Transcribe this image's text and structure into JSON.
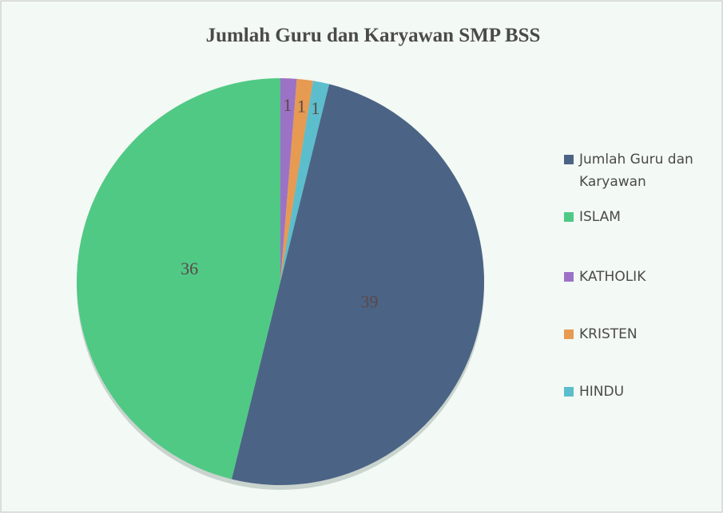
{
  "chart_data": {
    "type": "pie",
    "title": "Jumlah Guru dan Karyawan SMP BSS",
    "categories": [
      "Jumlah Guru dan Karyawan",
      "ISLAM",
      "KATHOLIK",
      "KRISTEN",
      "HINDU"
    ],
    "values": [
      39,
      36,
      1,
      1,
      1
    ],
    "colors": [
      "#4b6485",
      "#50c985",
      "#9c72c6",
      "#e79a52",
      "#5cbdcc"
    ],
    "legend": "right"
  }
}
